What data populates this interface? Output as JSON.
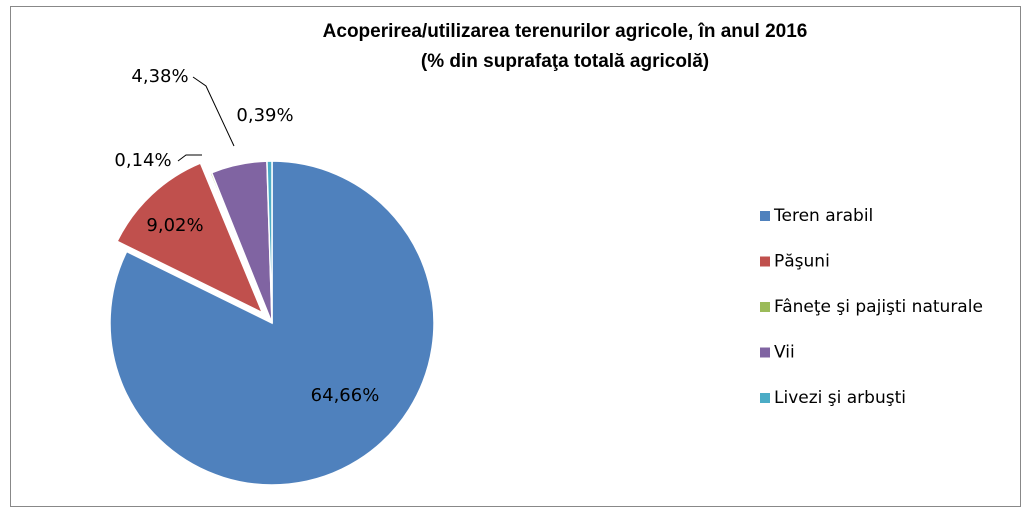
{
  "chart_data": {
    "type": "pie",
    "title": [
      "Acoperirea/utilizarea terenurilor agricole, în anul 2016",
      "(% din suprafaţa totală agricolă)"
    ],
    "categories": [
      "Teren arabil",
      "Păşuni",
      "Fâneţe şi pajişti naturale",
      "Vii",
      "Livezi şi arbuşti"
    ],
    "values": [
      64.66,
      9.02,
      0.14,
      4.38,
      0.39
    ],
    "value_labels": [
      "64,66%",
      "9,02%",
      "0,14%",
      "4,38%",
      "0,39%"
    ],
    "colors": [
      "#4f81bd",
      "#c0504d",
      "#9bbb59",
      "#8064a2",
      "#4bacc6"
    ],
    "legend": "right"
  }
}
